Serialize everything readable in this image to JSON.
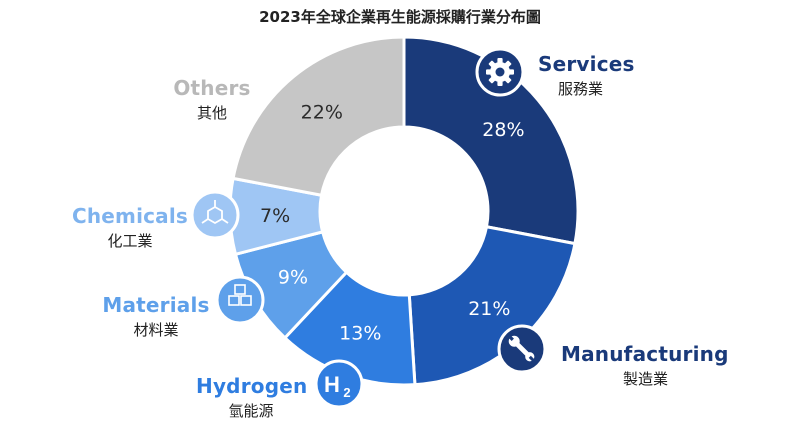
{
  "chart_data": {
    "type": "pie",
    "title": "2023年全球企業再生能源採購行業分布圖",
    "slices": [
      {
        "key": "services",
        "en": "Services",
        "zh": "服務業",
        "value": 28,
        "label": "28%",
        "color": "#1a3a7a"
      },
      {
        "key": "manufacturing",
        "en": "Manufacturing",
        "zh": "製造業",
        "value": 21,
        "label": "21%",
        "color": "#1e58b4"
      },
      {
        "key": "hydrogen",
        "en": "Hydrogen",
        "zh": "氫能源",
        "value": 13,
        "label": "13%",
        "color": "#2f7de0"
      },
      {
        "key": "materials",
        "en": "Materials",
        "zh": "材料業",
        "value": 9,
        "label": "9%",
        "color": "#5ea0ea"
      },
      {
        "key": "chemicals",
        "en": "Chemicals",
        "zh": "化工業",
        "value": 7,
        "label": "7%",
        "color": "#9fc6f4"
      },
      {
        "key": "others",
        "en": "Others",
        "zh": "其他",
        "value": 22,
        "label": "22%",
        "color": "#c6c6c6"
      }
    ]
  },
  "colors": {
    "services_text": "#1a3a7a",
    "manufacturing_text": "#1a3a7a",
    "hydrogen_text": "#2f7de0",
    "materials_text": "#5ea0ea",
    "chemicals_text": "#7fb3ee",
    "others_text": "#b8b8b8"
  },
  "icons": {
    "services": "gear-icon",
    "manufacturing": "wrench-icon",
    "hydrogen": "h2-icon",
    "materials": "boxes-icon",
    "chemicals": "molecule-icon"
  },
  "hydrogen_icon_text": {
    "main": "H",
    "sub": "2"
  }
}
